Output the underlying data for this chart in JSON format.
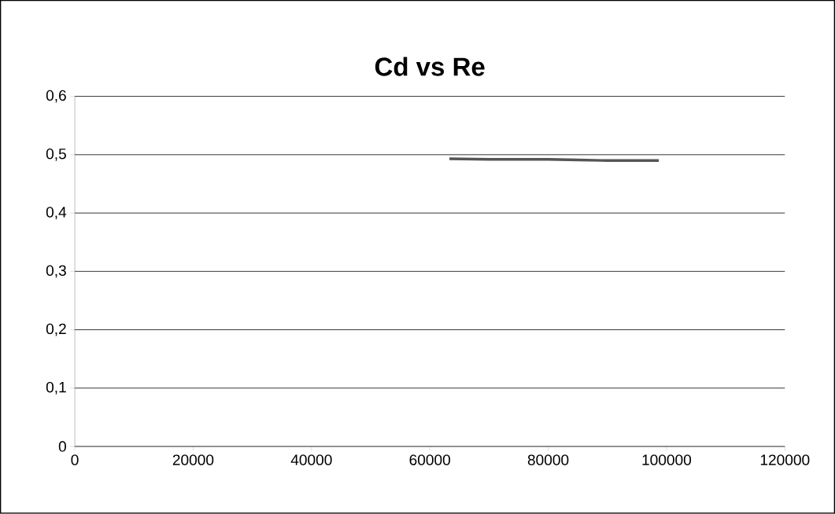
{
  "chart_data": {
    "type": "line",
    "title": "Cd vs Re",
    "x": [
      63300,
      70000,
      75000,
      80000,
      85000,
      90000,
      95000,
      98700
    ],
    "values": [
      0.493,
      0.492,
      0.492,
      0.492,
      0.491,
      0.49,
      0.49,
      0.49
    ],
    "color": "#555555",
    "xlim": [
      0,
      120000
    ],
    "xticks": [
      0,
      20000,
      40000,
      60000,
      80000,
      100000,
      120000
    ],
    "ylim": [
      0,
      0.6
    ],
    "yticks": [
      {
        "value": 0,
        "label": "0"
      },
      {
        "value": 0.1,
        "label": "0,1"
      },
      {
        "value": 0.2,
        "label": "0,2"
      },
      {
        "value": 0.3,
        "label": "0,3"
      },
      {
        "value": 0.4,
        "label": "0,4"
      },
      {
        "value": 0.5,
        "label": "0,5"
      },
      {
        "value": 0.6,
        "label": "0,6"
      }
    ],
    "grid": "y",
    "marker": "none",
    "line_style": "solid"
  }
}
